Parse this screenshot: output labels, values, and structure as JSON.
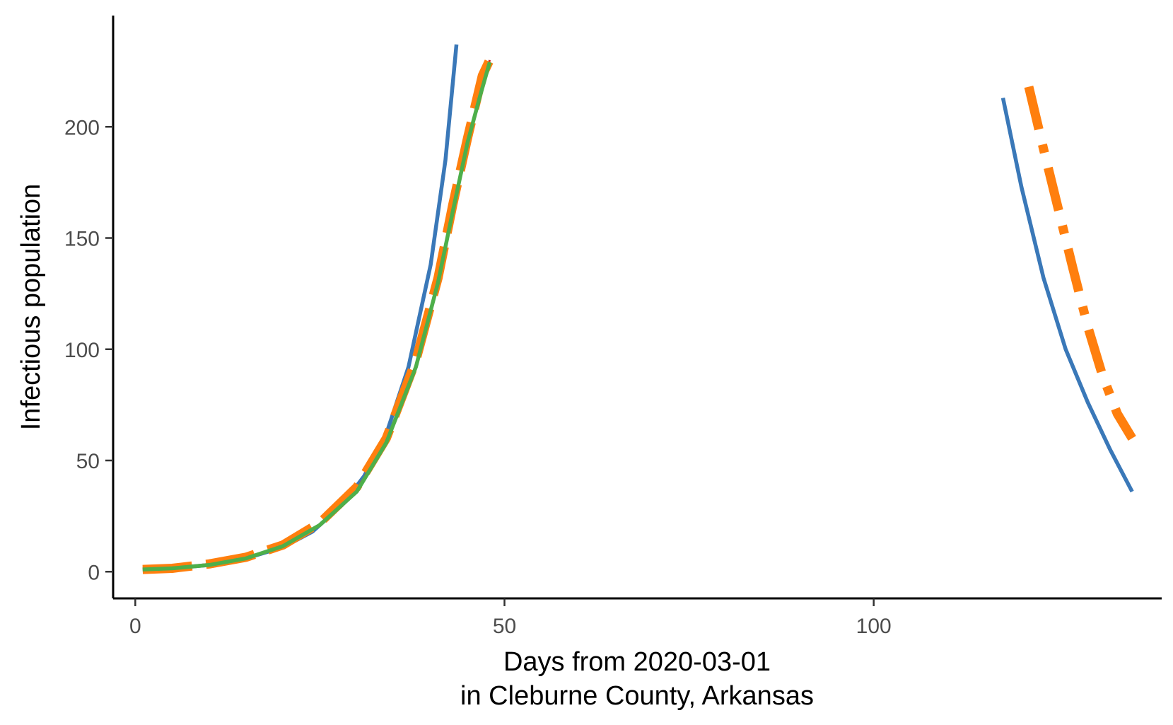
{
  "chart_data": {
    "type": "line",
    "xlabel": [
      "Days from 2020-03-01",
      "in Cleburne County, Arkansas"
    ],
    "ylabel": "Infectious population",
    "xlim": [
      -3,
      139
    ],
    "ylim": [
      -12,
      250
    ],
    "x_ticks": [
      0,
      50,
      100
    ],
    "y_ticks": [
      0,
      50,
      100,
      150,
      200
    ],
    "grid": false,
    "legend": "none",
    "series": [
      {
        "color": "#3A78B8",
        "style": "solid",
        "points": [
          [
            1,
            1
          ],
          [
            5,
            1.5
          ],
          [
            10,
            3
          ],
          [
            15,
            6
          ],
          [
            20,
            11
          ],
          [
            24,
            18
          ],
          [
            28,
            30
          ],
          [
            31,
            43
          ],
          [
            34,
            62
          ],
          [
            37,
            92
          ],
          [
            40,
            138
          ],
          [
            42,
            185
          ],
          [
            43.5,
            237
          ]
        ]
      },
      {
        "color": "#3A78B8",
        "style": "solid",
        "points": [
          [
            117.5,
            213
          ],
          [
            120,
            173
          ],
          [
            123,
            132
          ],
          [
            126,
            100
          ],
          [
            129,
            76
          ],
          [
            132,
            55
          ],
          [
            135,
            36
          ]
        ]
      },
      {
        "color": "#D62728",
        "style": "dashed-thin",
        "points": [
          [
            1,
            1.5
          ],
          [
            5,
            1.5
          ],
          [
            10,
            3.5
          ],
          [
            15,
            6
          ],
          [
            20,
            11.5
          ],
          [
            25,
            21
          ],
          [
            30,
            37
          ],
          [
            34,
            59
          ],
          [
            38,
            93
          ],
          [
            41,
            130
          ],
          [
            43,
            163
          ],
          [
            45,
            193
          ],
          [
            46.5,
            211
          ],
          [
            48,
            230
          ]
        ]
      },
      {
        "color": "#FF7F0E",
        "style": "longdash",
        "points": [
          [
            1,
            1
          ],
          [
            5,
            1.5
          ],
          [
            10,
            3.5
          ],
          [
            15,
            6.5
          ],
          [
            20,
            12
          ],
          [
            25,
            22
          ],
          [
            30,
            38
          ],
          [
            34,
            60
          ],
          [
            38,
            95
          ],
          [
            41,
            132
          ],
          [
            43,
            165
          ],
          [
            45,
            195
          ],
          [
            47,
            223
          ],
          [
            48,
            230
          ]
        ]
      },
      {
        "color": "#4DAF4A",
        "style": "solid",
        "points": [
          [
            1,
            1
          ],
          [
            5,
            1.5
          ],
          [
            10,
            3
          ],
          [
            15,
            6
          ],
          [
            20,
            11.5
          ],
          [
            25,
            21
          ],
          [
            30,
            36
          ],
          [
            34,
            58
          ],
          [
            38,
            92
          ],
          [
            41,
            130
          ],
          [
            43,
            162
          ],
          [
            45,
            193
          ],
          [
            46.7,
            214
          ],
          [
            48,
            229
          ]
        ]
      },
      {
        "color": "#FF7F0E",
        "style": "dotdash",
        "points": [
          [
            121,
            218
          ],
          [
            123,
            190
          ],
          [
            125,
            163
          ],
          [
            127,
            136
          ],
          [
            129,
            110
          ],
          [
            131,
            88
          ],
          [
            133,
            71
          ],
          [
            135,
            60
          ]
        ]
      }
    ]
  }
}
